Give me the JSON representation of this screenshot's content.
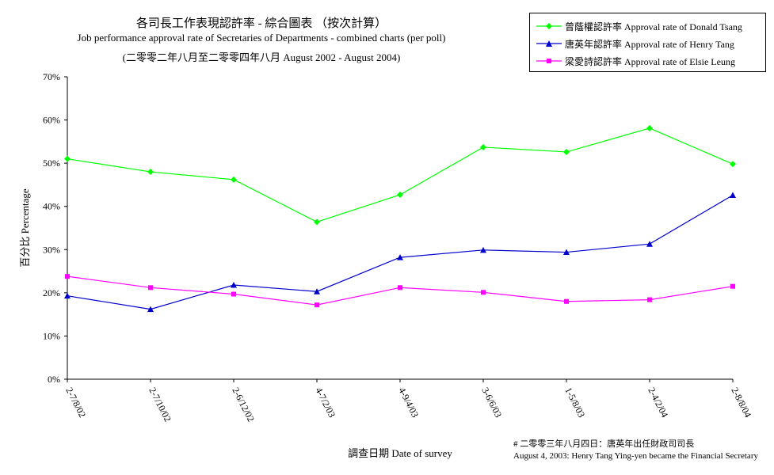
{
  "header": {
    "title_zh": "各司長工作表現認許率  -  綜合圖表  （按次計算）",
    "title_en": "Job performance approval rate of Secretaries of Departments - combined charts (per poll)",
    "subtitle": "(二零零二年八月至二零零四年八月 August 2002 - August 2004)"
  },
  "footnote": {
    "line1": "# 二零零三年八月四日：唐英年出任財政司司長",
    "line2": "August 4, 2003: Henry Tang Ying-yen became the Financial Secretary"
  },
  "chart_data": {
    "type": "line",
    "xlabel": "調查日期 Date of survey",
    "ylabel": "百分比 Percentage",
    "ylim": [
      0,
      70
    ],
    "yticks": [
      0,
      10,
      20,
      30,
      40,
      50,
      60,
      70
    ],
    "ytick_labels": [
      "0%",
      "10%",
      "20%",
      "30%",
      "40%",
      "50%",
      "60%",
      "70%"
    ],
    "grid": false,
    "legend_position": "top-right",
    "categories": [
      "2-7/8/02",
      "2-7/10/02",
      "2-6/12/02",
      "4-7/2/03",
      "4-9/4/03",
      "3-6/6/03",
      "1-5/8/03",
      "2-4/2/04",
      "2-8/8/04"
    ],
    "series": [
      {
        "name": "曾蔭權認許率 Approval rate of Donald Tsang",
        "color": "#00ff00",
        "marker": "diamond",
        "values": [
          51.0,
          48.0,
          46.2,
          36.4,
          42.7,
          53.7,
          52.6,
          58.1,
          49.8
        ]
      },
      {
        "name": "唐英年認許率 Approval rate of Henry Tang",
        "color": "#0000cc",
        "marker": "triangle",
        "values": [
          19.3,
          16.2,
          21.8,
          20.3,
          28.2,
          29.9,
          29.4,
          31.3,
          42.6
        ]
      },
      {
        "name": "梁愛詩認許率 Approval rate of Elsie Leung",
        "color": "#ff00ff",
        "marker": "square",
        "values": [
          23.8,
          21.2,
          19.7,
          17.2,
          21.2,
          20.1,
          18.0,
          18.4,
          21.5
        ]
      }
    ]
  }
}
